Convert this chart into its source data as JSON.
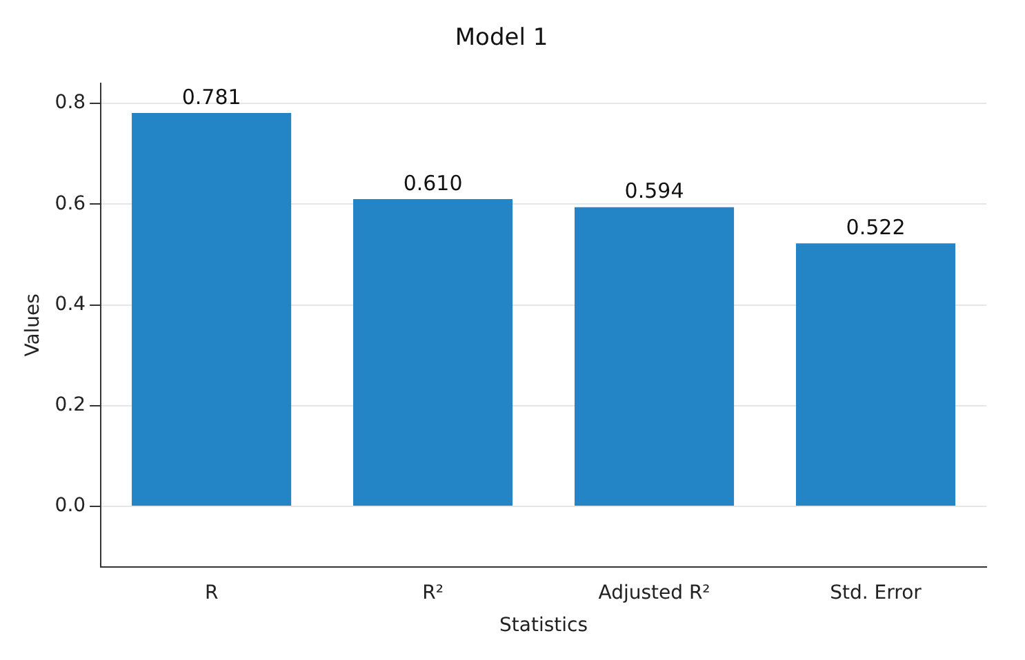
{
  "chart_data": {
    "type": "bar",
    "title": "Model 1",
    "xlabel": "Statistics",
    "ylabel": "Values",
    "categories": [
      "R",
      "R²",
      "Adjusted R²",
      "Std. Error"
    ],
    "values": [
      0.781,
      0.61,
      0.594,
      0.522
    ],
    "color": "#2384c6",
    "value_labels": [
      "0.781",
      "0.610",
      "0.594",
      "0.522"
    ],
    "ylim": [
      -0.12,
      0.84
    ],
    "yticks": [
      {
        "value": 0,
        "label": "0.0"
      },
      0.2,
      0.4,
      0.6,
      0.8
    ],
    "grid": "y"
  }
}
